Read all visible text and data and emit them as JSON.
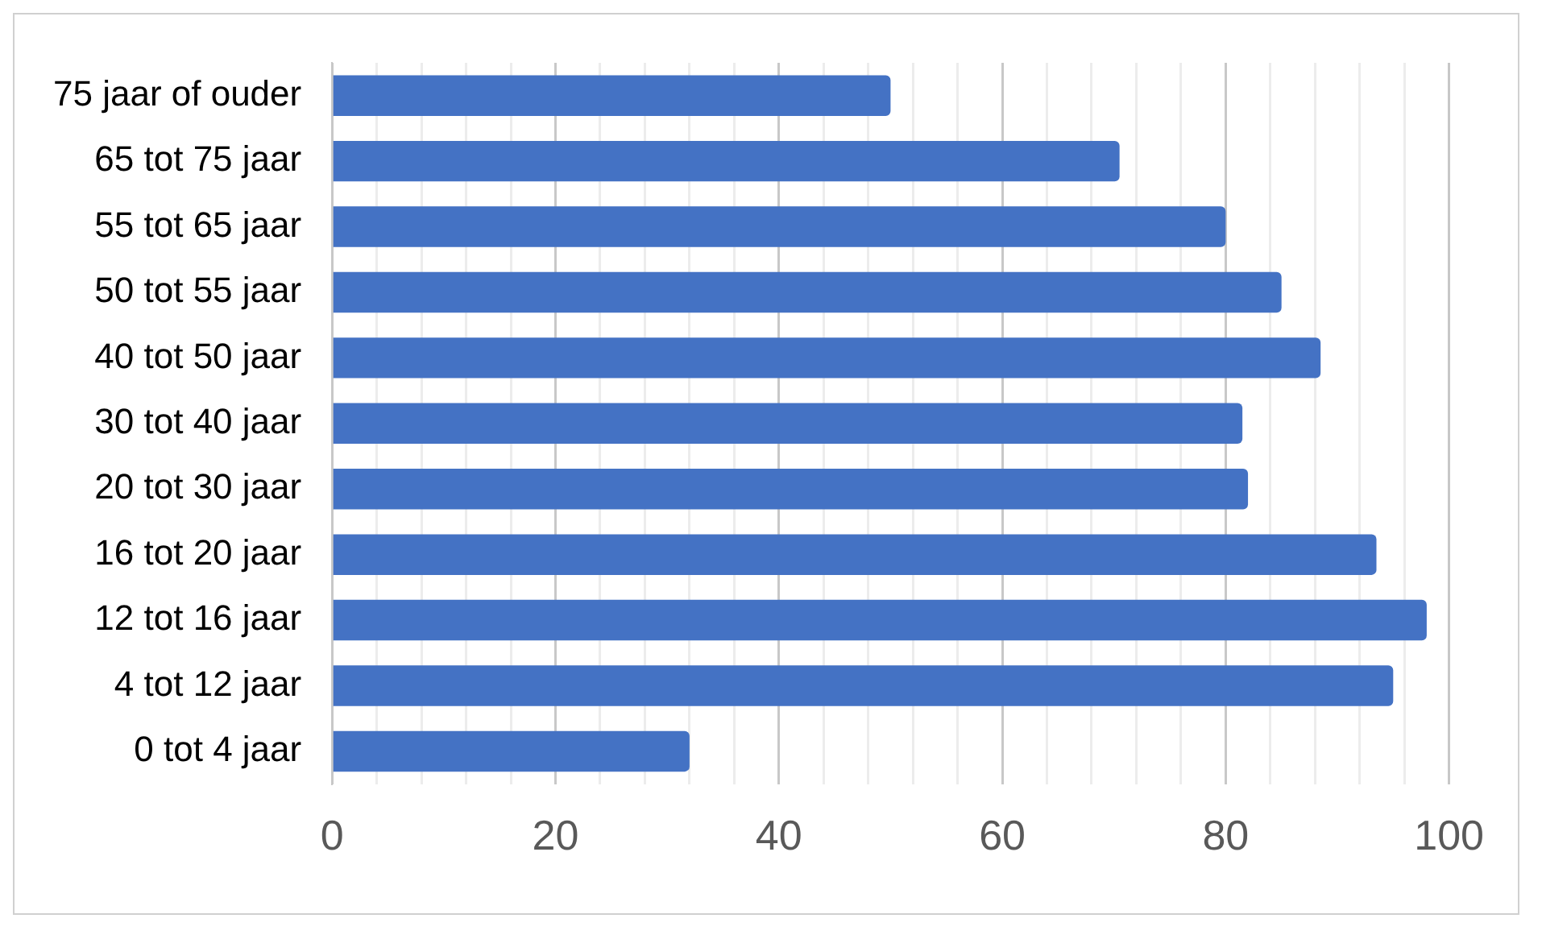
{
  "chart_data": {
    "type": "bar",
    "orientation": "horizontal",
    "categories": [
      "75 jaar of ouder",
      "65 tot 75 jaar",
      "55 tot 65 jaar",
      "50 tot 55 jaar",
      "40 tot 50 jaar",
      "30 tot 40 jaar",
      "20 tot 30 jaar",
      "16 tot 20 jaar",
      "12 tot 16 jaar",
      "4 tot 12 jaar",
      "0 tot 4 jaar"
    ],
    "values": [
      50,
      70.5,
      80,
      85,
      88.5,
      81.5,
      82,
      93.5,
      98,
      95,
      32
    ],
    "color": "#4472c4",
    "xlim": [
      0,
      100
    ],
    "xticks": [
      0,
      {
        "value": 4,
        "label": null
      },
      {
        "value": 8,
        "label": null
      },
      {
        "value": 12,
        "label": null
      },
      {
        "value": 16,
        "label": null
      },
      20,
      {
        "value": 24,
        "label": null
      },
      {
        "value": 28,
        "label": null
      },
      {
        "value": 32,
        "label": null
      },
      {
        "value": 36,
        "label": null
      },
      40,
      {
        "value": 44,
        "label": null
      },
      {
        "value": 48,
        "label": null
      },
      {
        "value": 52,
        "label": null
      },
      {
        "value": 56,
        "label": null
      },
      60,
      {
        "value": 64,
        "label": null
      },
      {
        "value": 68,
        "label": null
      },
      {
        "value": 72,
        "label": null
      },
      {
        "value": 76,
        "label": null
      },
      80,
      {
        "value": 84,
        "label": null
      },
      {
        "value": 88,
        "label": null
      },
      {
        "value": 92,
        "label": null
      },
      {
        "value": 96,
        "label": null
      },
      100
    ],
    "grid": "x",
    "legend": false
  }
}
